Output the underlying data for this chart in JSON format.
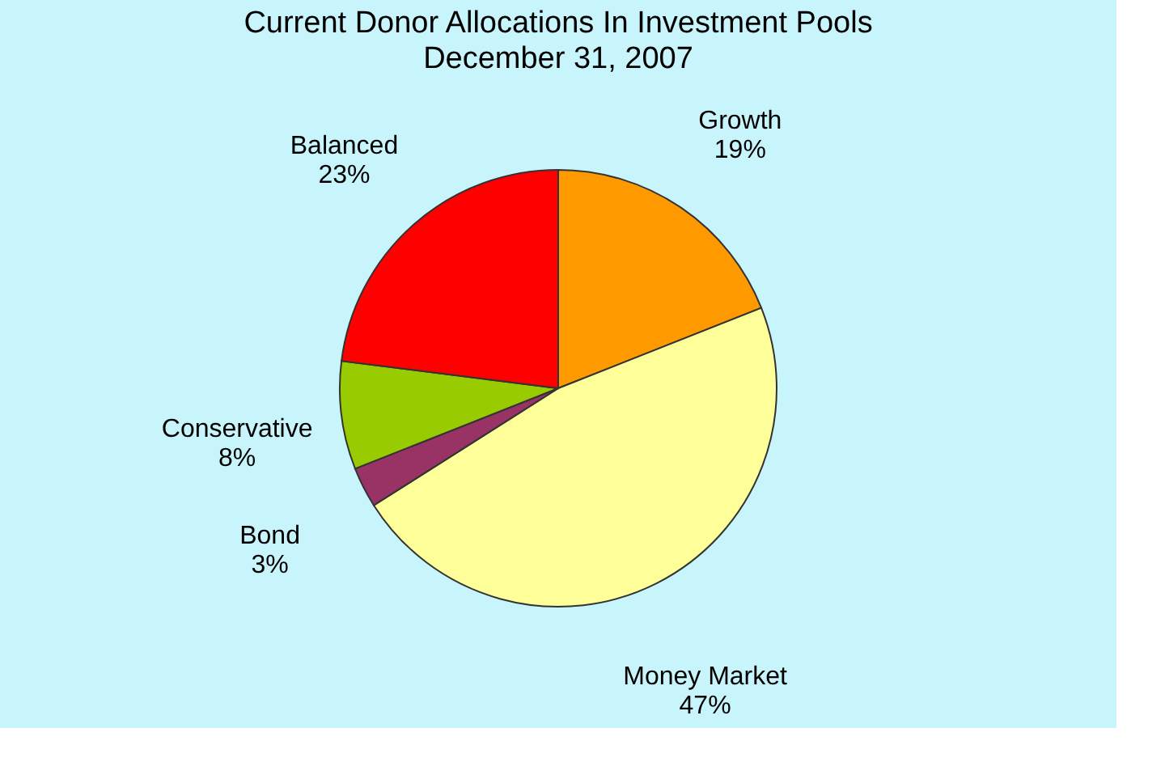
{
  "chart_data": {
    "type": "pie",
    "title": "Current Donor Allocations In Investment Pools",
    "subtitle": "December 31, 2007",
    "categories": [
      "Growth",
      "Money Market",
      "Bond",
      "Conservative",
      "Balanced"
    ],
    "values": [
      19,
      47,
      3,
      8,
      23
    ],
    "value_labels": [
      "19%",
      "47%",
      "3%",
      "8%",
      "23%"
    ],
    "colors": [
      "#ff9900",
      "#ffff99",
      "#993366",
      "#99cc00",
      "#ff0000"
    ],
    "legend": false
  }
}
